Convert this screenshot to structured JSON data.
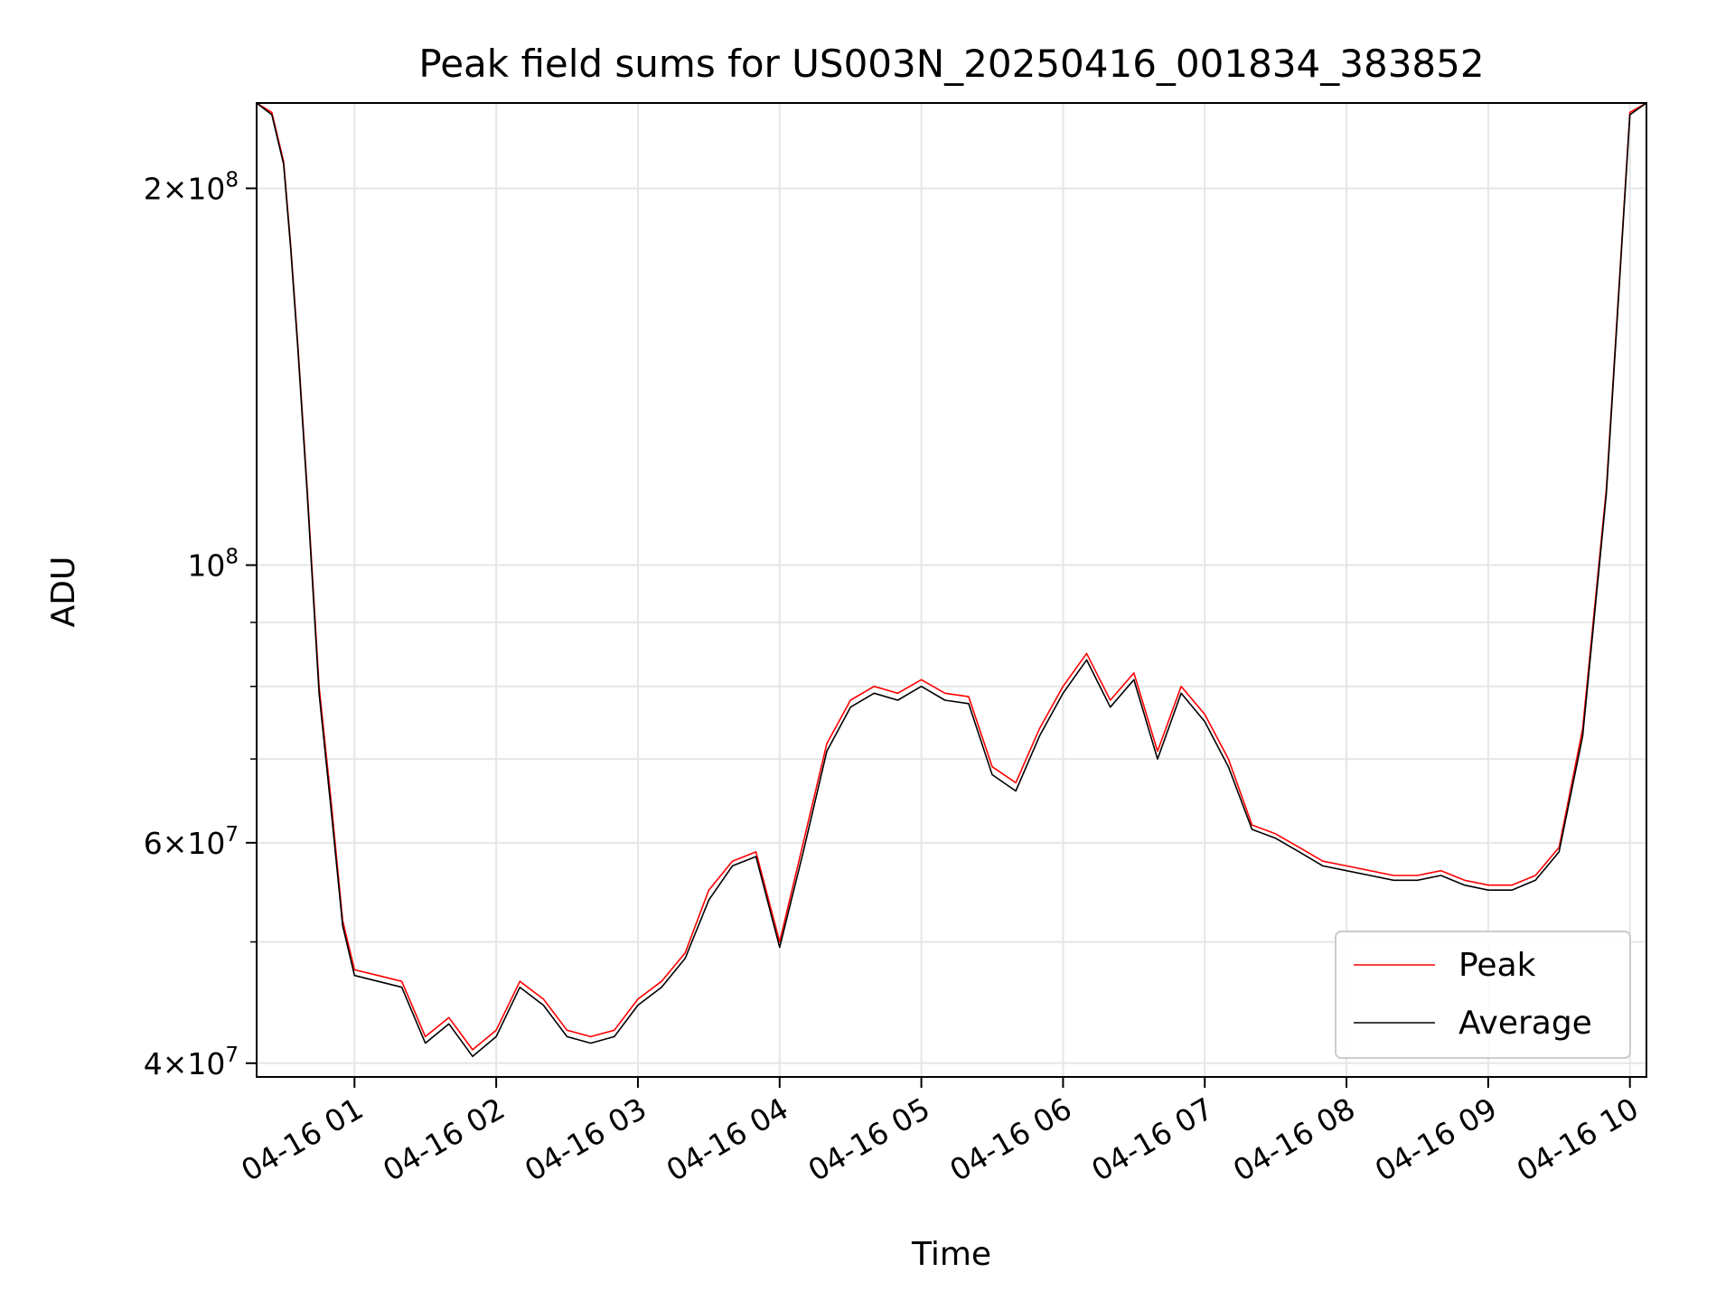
{
  "chart_data": {
    "type": "line",
    "title": "Peak field sums for US003N_20250416_001834_383852",
    "xlabel": "Time",
    "ylabel": "ADU",
    "yscale": "log",
    "ylim": [
      39000000,
      234000000
    ],
    "xlim": [
      "2025-04-16 00:18:34",
      "2025-04-16 10:07:00"
    ],
    "grid": true,
    "legend_position": "lower-right",
    "x_ticks": [
      {
        "value": "2025-04-16 01:00",
        "label": "04-16 01"
      },
      {
        "value": "2025-04-16 02:00",
        "label": "04-16 02"
      },
      {
        "value": "2025-04-16 03:00",
        "label": "04-16 03"
      },
      {
        "value": "2025-04-16 04:00",
        "label": "04-16 04"
      },
      {
        "value": "2025-04-16 05:00",
        "label": "04-16 05"
      },
      {
        "value": "2025-04-16 06:00",
        "label": "04-16 06"
      },
      {
        "value": "2025-04-16 07:00",
        "label": "04-16 07"
      },
      {
        "value": "2025-04-16 08:00",
        "label": "04-16 08"
      },
      {
        "value": "2025-04-16 09:00",
        "label": "04-16 09"
      },
      {
        "value": "2025-04-16 10:00",
        "label": "04-16 10"
      }
    ],
    "y_major_ticks": [
      {
        "value": 40000000,
        "mant": "4",
        "exp": "7"
      },
      {
        "value": 60000000,
        "mant": "6",
        "exp": "7"
      },
      {
        "value": 100000000,
        "mant": "",
        "exp": "8"
      },
      {
        "value": 200000000,
        "mant": "2",
        "exp": "8"
      }
    ],
    "y_minor_ticks": [
      50000000,
      70000000,
      80000000,
      90000000
    ],
    "series": [
      {
        "name": "Peak",
        "color": "#ff0000",
        "x": [
          "2025-04-16 00:18:34",
          "2025-04-16 00:25",
          "2025-04-16 00:30",
          "2025-04-16 00:33",
          "2025-04-16 00:36",
          "2025-04-16 00:40",
          "2025-04-16 00:45",
          "2025-04-16 00:50",
          "2025-04-16 00:55",
          "2025-04-16 01:00",
          "2025-04-16 01:10",
          "2025-04-16 01:20",
          "2025-04-16 01:30",
          "2025-04-16 01:40",
          "2025-04-16 01:50",
          "2025-04-16 02:00",
          "2025-04-16 02:10",
          "2025-04-16 02:20",
          "2025-04-16 02:30",
          "2025-04-16 02:40",
          "2025-04-16 02:50",
          "2025-04-16 03:00",
          "2025-04-16 03:10",
          "2025-04-16 03:20",
          "2025-04-16 03:30",
          "2025-04-16 03:40",
          "2025-04-16 03:50",
          "2025-04-16 04:00",
          "2025-04-16 04:10",
          "2025-04-16 04:20",
          "2025-04-16 04:30",
          "2025-04-16 04:40",
          "2025-04-16 04:50",
          "2025-04-16 05:00",
          "2025-04-16 05:10",
          "2025-04-16 05:20",
          "2025-04-16 05:30",
          "2025-04-16 05:40",
          "2025-04-16 05:50",
          "2025-04-16 06:00",
          "2025-04-16 06:10",
          "2025-04-16 06:20",
          "2025-04-16 06:30",
          "2025-04-16 06:40",
          "2025-04-16 06:50",
          "2025-04-16 07:00",
          "2025-04-16 07:10",
          "2025-04-16 07:20",
          "2025-04-16 07:30",
          "2025-04-16 07:40",
          "2025-04-16 07:50",
          "2025-04-16 08:00",
          "2025-04-16 08:10",
          "2025-04-16 08:20",
          "2025-04-16 08:30",
          "2025-04-16 08:40",
          "2025-04-16 08:50",
          "2025-04-16 09:00",
          "2025-04-16 09:10",
          "2025-04-16 09:20",
          "2025-04-16 09:30",
          "2025-04-16 09:40",
          "2025-04-16 09:50",
          "2025-04-16 10:00",
          "2025-04-16 10:07"
        ],
        "values": [
          234000000,
          230000000,
          210000000,
          180000000,
          150000000,
          115000000,
          80000000,
          65000000,
          52000000,
          47500000,
          47000000,
          46500000,
          42000000,
          43500000,
          41000000,
          42500000,
          46500000,
          45000000,
          42500000,
          42000000,
          42500000,
          45000000,
          46500000,
          49000000,
          55000000,
          58000000,
          59000000,
          50000000,
          60000000,
          72000000,
          78000000,
          80000000,
          79000000,
          81000000,
          79000000,
          78500000,
          69000000,
          67000000,
          74000000,
          80000000,
          85000000,
          78000000,
          82000000,
          71000000,
          80000000,
          76000000,
          70000000,
          62000000,
          61000000,
          59500000,
          58000000,
          57500000,
          57000000,
          56500000,
          56500000,
          57000000,
          56000000,
          55500000,
          55500000,
          56500000,
          59500000,
          74000000,
          115000000,
          230000000,
          234000000
        ]
      },
      {
        "name": "Average",
        "color": "#000000",
        "x": [
          "2025-04-16 00:18:34",
          "2025-04-16 00:25",
          "2025-04-16 00:30",
          "2025-04-16 00:33",
          "2025-04-16 00:36",
          "2025-04-16 00:40",
          "2025-04-16 00:45",
          "2025-04-16 00:50",
          "2025-04-16 00:55",
          "2025-04-16 01:00",
          "2025-04-16 01:10",
          "2025-04-16 01:20",
          "2025-04-16 01:30",
          "2025-04-16 01:40",
          "2025-04-16 01:50",
          "2025-04-16 02:00",
          "2025-04-16 02:10",
          "2025-04-16 02:20",
          "2025-04-16 02:30",
          "2025-04-16 02:40",
          "2025-04-16 02:50",
          "2025-04-16 03:00",
          "2025-04-16 03:10",
          "2025-04-16 03:20",
          "2025-04-16 03:30",
          "2025-04-16 03:40",
          "2025-04-16 03:50",
          "2025-04-16 04:00",
          "2025-04-16 04:10",
          "2025-04-16 04:20",
          "2025-04-16 04:30",
          "2025-04-16 04:40",
          "2025-04-16 04:50",
          "2025-04-16 05:00",
          "2025-04-16 05:10",
          "2025-04-16 05:20",
          "2025-04-16 05:30",
          "2025-04-16 05:40",
          "2025-04-16 05:50",
          "2025-04-16 06:00",
          "2025-04-16 06:10",
          "2025-04-16 06:20",
          "2025-04-16 06:30",
          "2025-04-16 06:40",
          "2025-04-16 06:50",
          "2025-04-16 07:00",
          "2025-04-16 07:10",
          "2025-04-16 07:20",
          "2025-04-16 07:30",
          "2025-04-16 07:40",
          "2025-04-16 07:50",
          "2025-04-16 08:00",
          "2025-04-16 08:10",
          "2025-04-16 08:20",
          "2025-04-16 08:30",
          "2025-04-16 08:40",
          "2025-04-16 08:50",
          "2025-04-16 09:00",
          "2025-04-16 09:10",
          "2025-04-16 09:20",
          "2025-04-16 09:30",
          "2025-04-16 09:40",
          "2025-04-16 09:50",
          "2025-04-16 10:00",
          "2025-04-16 10:07"
        ],
        "values": [
          234000000,
          229000000,
          209000000,
          179000000,
          149000000,
          114000000,
          79000000,
          64000000,
          51500000,
          47000000,
          46500000,
          46000000,
          41500000,
          43000000,
          40500000,
          42000000,
          46000000,
          44500000,
          42000000,
          41500000,
          42000000,
          44500000,
          46000000,
          48500000,
          54000000,
          57500000,
          58500000,
          49500000,
          59000000,
          71000000,
          77000000,
          79000000,
          78000000,
          80000000,
          78000000,
          77500000,
          68000000,
          66000000,
          73000000,
          79000000,
          84000000,
          77000000,
          81000000,
          70000000,
          79000000,
          75000000,
          69000000,
          61500000,
          60500000,
          59000000,
          57500000,
          57000000,
          56500000,
          56000000,
          56000000,
          56500000,
          55500000,
          55000000,
          55000000,
          56000000,
          59000000,
          73000000,
          114000000,
          229000000,
          234000000
        ]
      }
    ]
  }
}
